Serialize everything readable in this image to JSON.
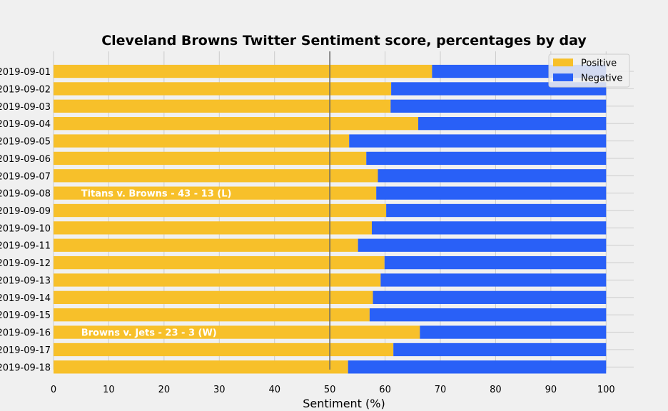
{
  "chart_data": {
    "type": "bar",
    "orientation": "horizontal",
    "stacked": true,
    "title": "Cleveland Browns Twitter Sentiment score, percentages by day",
    "xlabel": "Sentiment (%)",
    "ylabel": "",
    "xlim": [
      0,
      105
    ],
    "xticks": [
      0,
      10,
      20,
      30,
      40,
      50,
      60,
      70,
      80,
      90,
      100
    ],
    "reference_line": 50,
    "grid": true,
    "legend_position": "top-right",
    "categories": [
      "2019-09-01",
      "2019-09-02",
      "2019-09-03",
      "2019-09-04",
      "2019-09-05",
      "2019-09-06",
      "2019-09-07",
      "2019-09-08",
      "2019-09-09",
      "2019-09-10",
      "2019-09-11",
      "2019-09-12",
      "2019-09-13",
      "2019-09-14",
      "2019-09-15",
      "2019-09-16",
      "2019-09-17",
      "2019-09-18"
    ],
    "series": [
      {
        "name": "Positive",
        "color": "#f7c02a",
        "values": [
          68.5,
          61.1,
          61.0,
          66.0,
          53.5,
          56.6,
          58.7,
          58.4,
          60.2,
          57.6,
          55.1,
          59.9,
          59.2,
          57.8,
          57.2,
          66.3,
          61.5,
          53.3
        ]
      },
      {
        "name": "Negative",
        "color": "#2960f7",
        "values": [
          31.5,
          38.9,
          39.0,
          34.0,
          46.5,
          43.4,
          41.3,
          41.6,
          39.8,
          42.4,
          44.9,
          40.1,
          40.8,
          42.2,
          42.8,
          33.7,
          38.5,
          46.7
        ]
      }
    ],
    "annotations": [
      {
        "category": "2019-09-08",
        "x": 5,
        "text": "Titans v. Browns - 43 - 13 (L)"
      },
      {
        "category": "2019-09-16",
        "x": 5,
        "text": "Browns v. Jets - 23 - 3 (W)"
      }
    ]
  }
}
